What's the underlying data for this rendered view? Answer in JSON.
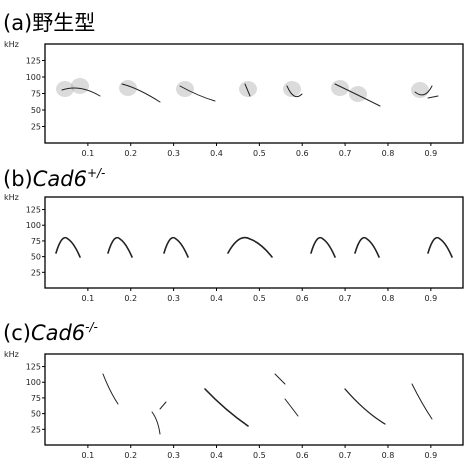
{
  "chart_data": [
    {
      "type": "spectrogram",
      "panel_label": "(a)",
      "title": "野生型",
      "title_italic": false,
      "y_label": "kHz",
      "xlim": [
        0,
        0.975
      ],
      "xticks": [
        0.1,
        0.2,
        0.3,
        0.4,
        0.5,
        0.6,
        0.7,
        0.8,
        0.9
      ],
      "ylim": [
        0,
        150
      ],
      "yticks": [
        25,
        50,
        75,
        100,
        125
      ]
    },
    {
      "type": "spectrogram",
      "panel_label": "(b)",
      "title": "Cad6",
      "title_superscript": "+/-",
      "title_italic": true,
      "y_label": "kHz",
      "xlim": [
        0,
        0.975
      ],
      "xticks": [
        0.1,
        0.2,
        0.3,
        0.4,
        0.5,
        0.6,
        0.7,
        0.8,
        0.9
      ],
      "ylim": [
        0,
        145
      ],
      "yticks": [
        25,
        50,
        75,
        100,
        125
      ]
    },
    {
      "type": "spectrogram",
      "panel_label": "(c)",
      "title": "Cad6",
      "title_superscript": "-/-",
      "title_italic": true,
      "y_label": "kHz",
      "xlim": [
        0,
        0.975
      ],
      "xticks": [
        0.1,
        0.2,
        0.3,
        0.4,
        0.5,
        0.6,
        0.7,
        0.8,
        0.9
      ],
      "ylim": [
        0,
        145
      ],
      "yticks": [
        25,
        50,
        75,
        100,
        125
      ]
    }
  ]
}
